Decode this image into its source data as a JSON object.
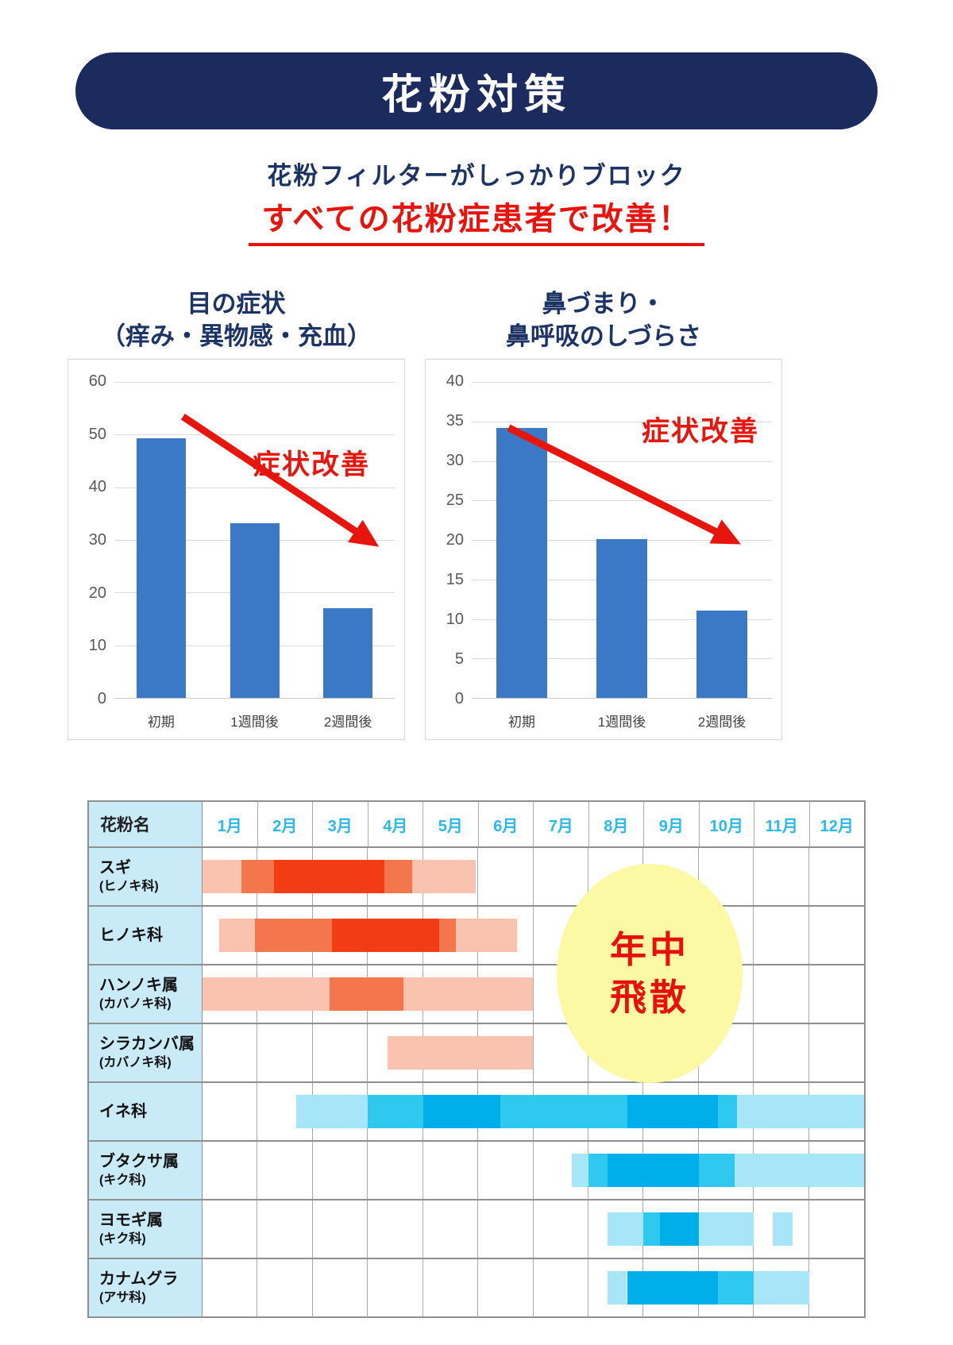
{
  "banner": {
    "title": "花粉対策"
  },
  "intro": {
    "line1": "花粉フィルターがしっかりブロック",
    "line2": "すべての花粉症患者で改善！"
  },
  "colors": {
    "banner_navy": "#1c2b5e",
    "text_navy": "#1c3366",
    "accent_red": "#e8150d",
    "bar_blue": "#3b79c6",
    "month_header_cyan": "#2ab9ec",
    "label_column_bg": "#c9eaf7"
  },
  "chart_data": [
    {
      "type": "bar",
      "title_lines": [
        "目の症状",
        "（痒み・異物感・充血）"
      ],
      "categories": [
        "初期",
        "1週間後",
        "2週間後"
      ],
      "values": [
        49,
        33,
        17
      ],
      "xlabel": "",
      "ylabel": "",
      "ylim": [
        0,
        60
      ],
      "ytick_step": 10,
      "grid": true,
      "legend": "none",
      "bar_color": "#3b79c6",
      "annotation": "症状改善",
      "annotation_color": "#e8150d",
      "arrow": "diagonal-down-right"
    },
    {
      "type": "bar",
      "title_lines": [
        "鼻づまり・",
        "鼻呼吸のしづらさ"
      ],
      "categories": [
        "初期",
        "1週間後",
        "2週間後"
      ],
      "values": [
        34,
        20,
        11
      ],
      "xlabel": "",
      "ylabel": "",
      "ylim": [
        0,
        40
      ],
      "ytick_step": 5,
      "grid": true,
      "legend": "none",
      "bar_color": "#3b79c6",
      "annotation": "症状改善",
      "annotation_color": "#e8150d",
      "arrow": "diagonal-down-right"
    },
    {
      "type": "gantt",
      "name_col_header": "花粉名",
      "months": [
        "1月",
        "2月",
        "3月",
        "4月",
        "5月",
        "6月",
        "7月",
        "8月",
        "9月",
        "10月",
        "11月",
        "12月"
      ],
      "intensity_levels": [
        "light",
        "mid",
        "dark"
      ],
      "palette": {
        "red": {
          "light": "#f9c3b0",
          "mid": "#f3764c",
          "dark": "#f23c13"
        },
        "blue": {
          "light": "#a6e6f8",
          "mid": "#2fc9f0",
          "dark": "#00aee9"
        }
      },
      "rows": [
        {
          "label_lines": [
            "スギ",
            "(ヒノキ科)"
          ],
          "palette": "red",
          "segments": [
            {
              "start": 0,
              "end": 0.7,
              "level": "light"
            },
            {
              "start": 0.7,
              "end": 1.3,
              "level": "mid"
            },
            {
              "start": 1.3,
              "end": 3.3,
              "level": "dark"
            },
            {
              "start": 3.3,
              "end": 3.8,
              "level": "mid"
            },
            {
              "start": 3.8,
              "end": 4.95,
              "level": "light"
            }
          ]
        },
        {
          "label_lines": [
            "ヒノキ科"
          ],
          "palette": "red",
          "segments": [
            {
              "start": 0.3,
              "end": 0.95,
              "level": "light"
            },
            {
              "start": 0.95,
              "end": 2.35,
              "level": "mid"
            },
            {
              "start": 2.35,
              "end": 4.3,
              "level": "dark"
            },
            {
              "start": 4.3,
              "end": 4.6,
              "level": "mid"
            },
            {
              "start": 4.6,
              "end": 5.7,
              "level": "light"
            }
          ]
        },
        {
          "label_lines": [
            "ハンノキ属",
            "(カバノキ科)"
          ],
          "palette": "red",
          "segments": [
            {
              "start": 0,
              "end": 2.3,
              "level": "light"
            },
            {
              "start": 2.3,
              "end": 3.65,
              "level": "mid"
            },
            {
              "start": 3.65,
              "end": 6,
              "level": "light"
            }
          ]
        },
        {
          "label_lines": [
            "シラカンバ属",
            "(カバノキ科)"
          ],
          "palette": "red",
          "segments": [
            {
              "start": 3.35,
              "end": 6,
              "level": "light"
            }
          ]
        },
        {
          "label_lines": [
            "イネ科"
          ],
          "palette": "blue",
          "segments": [
            {
              "start": 1.7,
              "end": 3,
              "level": "light"
            },
            {
              "start": 3,
              "end": 4,
              "level": "mid"
            },
            {
              "start": 4,
              "end": 5.4,
              "level": "dark"
            },
            {
              "start": 5.4,
              "end": 7.7,
              "level": "mid"
            },
            {
              "start": 7.7,
              "end": 9.35,
              "level": "dark"
            },
            {
              "start": 9.35,
              "end": 9.7,
              "level": "mid"
            },
            {
              "start": 9.7,
              "end": 12,
              "level": "light"
            }
          ]
        },
        {
          "label_lines": [
            "ブタクサ属",
            "(キク科)"
          ],
          "palette": "blue",
          "segments": [
            {
              "start": 6.7,
              "end": 7,
              "level": "light"
            },
            {
              "start": 7,
              "end": 7.35,
              "level": "mid"
            },
            {
              "start": 7.35,
              "end": 9,
              "level": "dark"
            },
            {
              "start": 9,
              "end": 9.65,
              "level": "mid"
            },
            {
              "start": 9.65,
              "end": 12,
              "level": "light"
            }
          ]
        },
        {
          "label_lines": [
            "ヨモギ属",
            "(キク科)"
          ],
          "palette": "blue",
          "segments": [
            {
              "start": 7.35,
              "end": 8,
              "level": "light"
            },
            {
              "start": 8,
              "end": 8.3,
              "level": "mid"
            },
            {
              "start": 8.3,
              "end": 9,
              "level": "dark"
            },
            {
              "start": 9,
              "end": 10,
              "level": "light"
            },
            {
              "start": 10.35,
              "end": 10.7,
              "level": "light"
            }
          ]
        },
        {
          "label_lines": [
            "カナムグラ",
            "(アサ科)"
          ],
          "palette": "blue",
          "segments": [
            {
              "start": 7.35,
              "end": 7.7,
              "level": "light"
            },
            {
              "start": 7.7,
              "end": 9.35,
              "level": "dark"
            },
            {
              "start": 9.35,
              "end": 10,
              "level": "mid"
            },
            {
              "start": 10,
              "end": 11,
              "level": "light"
            }
          ]
        }
      ],
      "badge": {
        "lines": [
          "年中",
          "飛散"
        ],
        "bg": "#fbf9a3",
        "text_color": "#e8100c"
      }
    }
  ]
}
